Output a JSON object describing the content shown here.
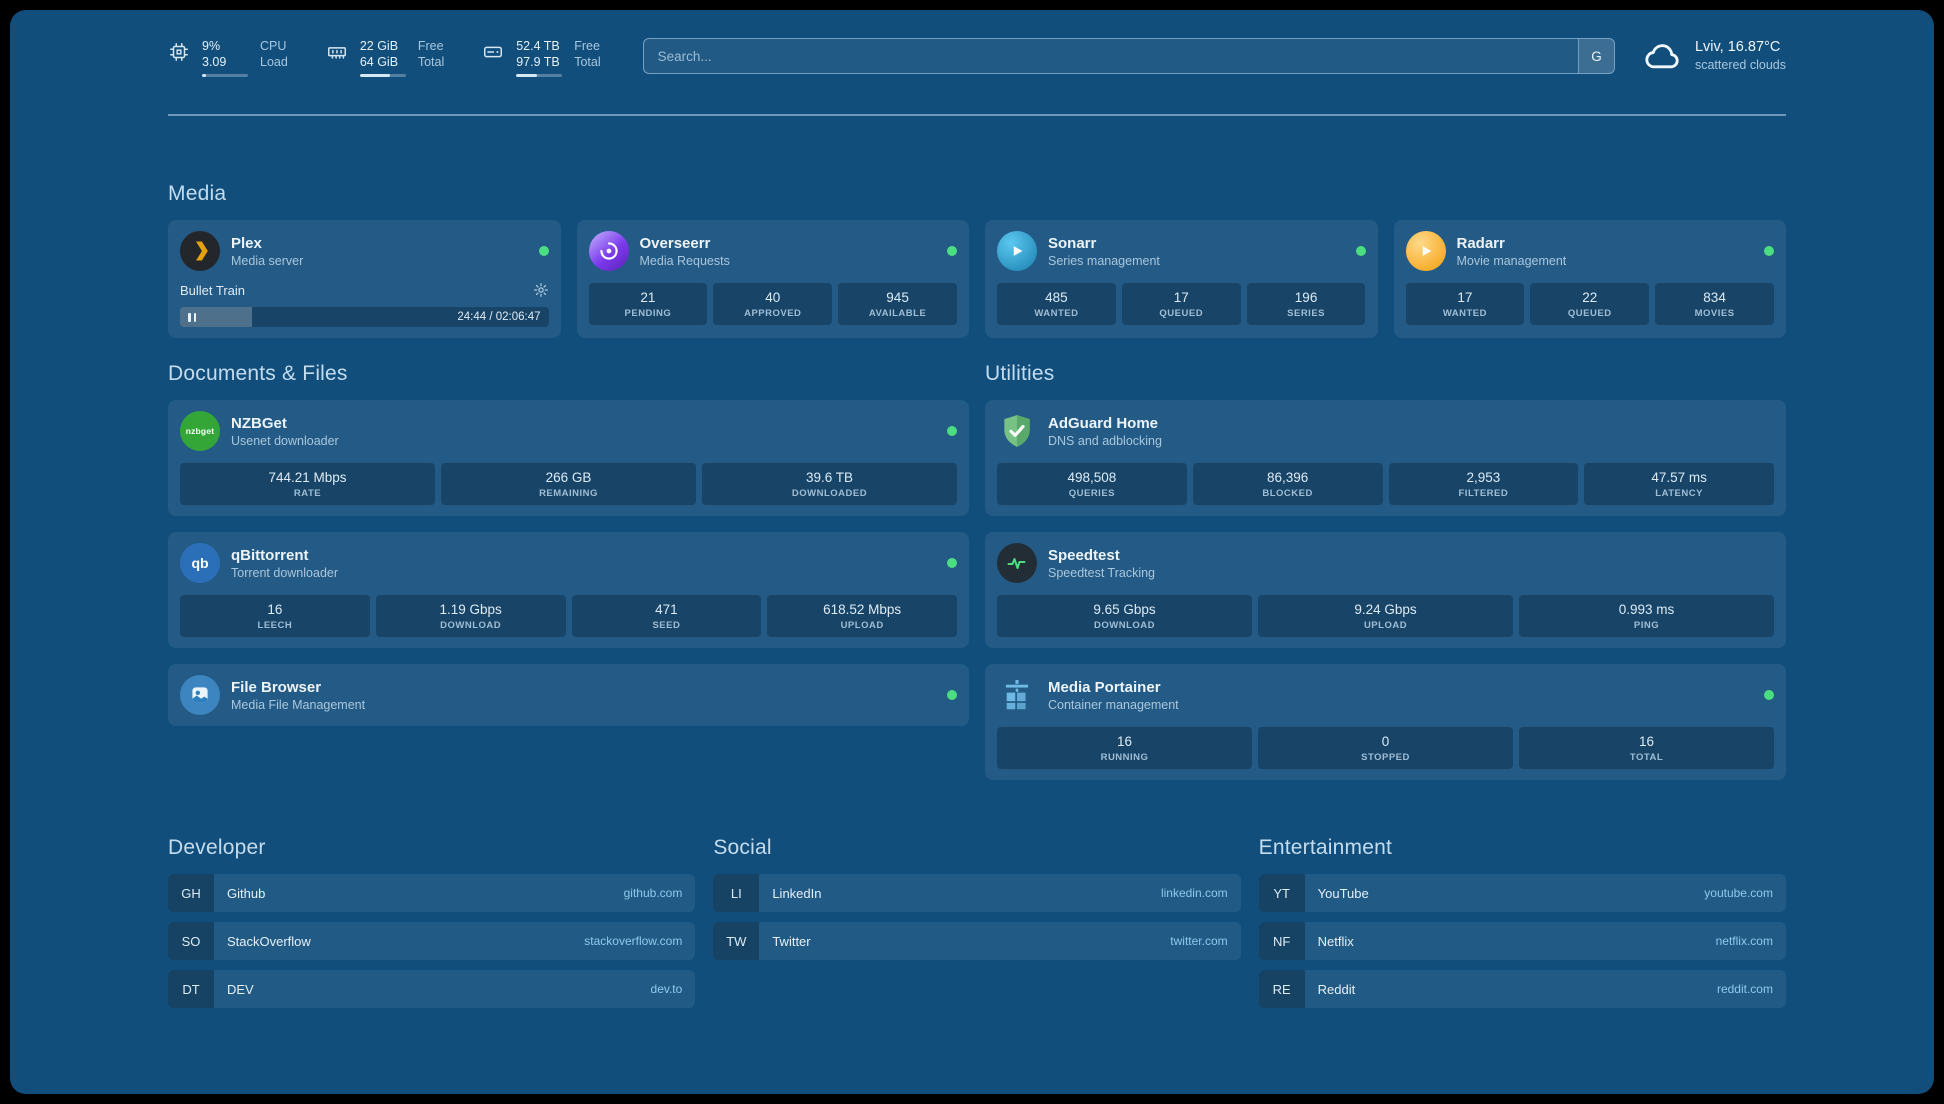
{
  "theme": {
    "background": "#114e7c",
    "card": "rgba(255,255,255,0.08)",
    "statbox": "rgba(8,31,52,0.38)",
    "text-primary": "#e9f1f8",
    "text-secondary": "#a9c6dc",
    "section-title": "#c3dcee",
    "link": "#8ec9ec",
    "status-online": "#4ade80"
  },
  "header": {
    "resources": [
      {
        "icon": "cpu-icon",
        "value_top": "9%",
        "value_bottom": "3.09",
        "label_top": "CPU",
        "label_bottom": "Load",
        "fill": 0.09
      },
      {
        "icon": "memory-icon",
        "value_top": "22 GiB",
        "value_bottom": "64 GiB",
        "label_top": "Free",
        "label_bottom": "Total",
        "fill": 0.66
      },
      {
        "icon": "disk-icon",
        "value_top": "52.4 TB",
        "value_bottom": "97.9 TB",
        "label_top": "Free",
        "label_bottom": "Total",
        "fill": 0.46
      }
    ],
    "search": {
      "placeholder": "Search...",
      "provider_label": "G"
    },
    "weather": {
      "location": "Lviv, 16.87°C",
      "condition": "scattered clouds"
    }
  },
  "media": {
    "title": "Media",
    "plex": {
      "name": "Plex",
      "subtitle": "Media server",
      "status": "online",
      "now_playing": "Bullet Train",
      "time": "24:44 / 02:06:47",
      "progress": 0.195
    },
    "overseerr": {
      "name": "Overseerr",
      "subtitle": "Media Requests",
      "status": "online",
      "stats": [
        {
          "value": "21",
          "label": "PENDING"
        },
        {
          "value": "40",
          "label": "APPROVED"
        },
        {
          "value": "945",
          "label": "AVAILABLE"
        }
      ]
    },
    "sonarr": {
      "name": "Sonarr",
      "subtitle": "Series management",
      "status": "online",
      "stats": [
        {
          "value": "485",
          "label": "WANTED"
        },
        {
          "value": "17",
          "label": "QUEUED"
        },
        {
          "value": "196",
          "label": "SERIES"
        }
      ]
    },
    "radarr": {
      "name": "Radarr",
      "subtitle": "Movie management",
      "status": "online",
      "stats": [
        {
          "value": "17",
          "label": "WANTED"
        },
        {
          "value": "22",
          "label": "QUEUED"
        },
        {
          "value": "834",
          "label": "MOVIES"
        }
      ]
    }
  },
  "documents": {
    "title": "Documents & Files",
    "nzbget": {
      "name": "NZBGet",
      "subtitle": "Usenet downloader",
      "status": "online",
      "icon_text": "nzbget",
      "stats": [
        {
          "value": "744.21 Mbps",
          "label": "RATE"
        },
        {
          "value": "266 GB",
          "label": "REMAINING"
        },
        {
          "value": "39.6 TB",
          "label": "DOWNLOADED"
        }
      ]
    },
    "qbittorrent": {
      "name": "qBittorrent",
      "subtitle": "Torrent downloader",
      "status": "online",
      "icon_text": "qb",
      "stats": [
        {
          "value": "16",
          "label": "LEECH"
        },
        {
          "value": "1.19 Gbps",
          "label": "DOWNLOAD"
        },
        {
          "value": "471",
          "label": "SEED"
        },
        {
          "value": "618.52 Mbps",
          "label": "UPLOAD"
        }
      ]
    },
    "filebrowser": {
      "name": "File Browser",
      "subtitle": "Media File Management",
      "status": "online"
    }
  },
  "utilities": {
    "title": "Utilities",
    "adguard": {
      "name": "AdGuard Home",
      "subtitle": "DNS and adblocking",
      "stats": [
        {
          "value": "498,508",
          "label": "QUERIES"
        },
        {
          "value": "86,396",
          "label": "BLOCKED"
        },
        {
          "value": "2,953",
          "label": "FILTERED"
        },
        {
          "value": "47.57 ms",
          "label": "LATENCY"
        }
      ]
    },
    "speedtest": {
      "name": "Speedtest",
      "subtitle": "Speedtest Tracking",
      "stats": [
        {
          "value": "9.65 Gbps",
          "label": "DOWNLOAD"
        },
        {
          "value": "9.24 Gbps",
          "label": "UPLOAD"
        },
        {
          "value": "0.993 ms",
          "label": "PING"
        }
      ]
    },
    "portainer": {
      "name": "Media Portainer",
      "subtitle": "Container management",
      "status": "online",
      "stats": [
        {
          "value": "16",
          "label": "RUNNING"
        },
        {
          "value": "0",
          "label": "STOPPED"
        },
        {
          "value": "16",
          "label": "TOTAL"
        }
      ]
    }
  },
  "bookmarks": {
    "developer": {
      "title": "Developer",
      "items": [
        {
          "abbr": "GH",
          "name": "Github",
          "domain": "github.com"
        },
        {
          "abbr": "SO",
          "name": "StackOverflow",
          "domain": "stackoverflow.com"
        },
        {
          "abbr": "DT",
          "name": "DEV",
          "domain": "dev.to"
        }
      ]
    },
    "social": {
      "title": "Social",
      "items": [
        {
          "abbr": "LI",
          "name": "LinkedIn",
          "domain": "linkedin.com"
        },
        {
          "abbr": "TW",
          "name": "Twitter",
          "domain": "twitter.com"
        }
      ]
    },
    "entertainment": {
      "title": "Entertainment",
      "items": [
        {
          "abbr": "YT",
          "name": "YouTube",
          "domain": "youtube.com"
        },
        {
          "abbr": "NF",
          "name": "Netflix",
          "domain": "netflix.com"
        },
        {
          "abbr": "RE",
          "name": "Reddit",
          "domain": "reddit.com"
        }
      ]
    }
  }
}
